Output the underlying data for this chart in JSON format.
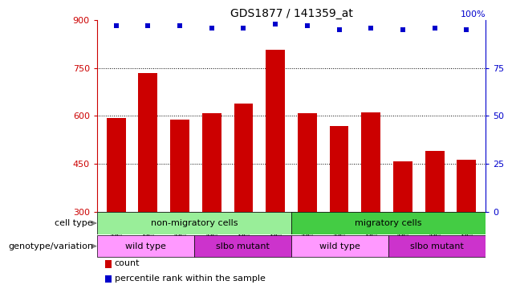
{
  "title": "GDS1877 / 141359_at",
  "samples": [
    "GSM96597",
    "GSM96598",
    "GSM96599",
    "GSM96604",
    "GSM96605",
    "GSM96606",
    "GSM96593",
    "GSM96595",
    "GSM96596",
    "GSM96600",
    "GSM96602",
    "GSM96603"
  ],
  "counts": [
    593,
    735,
    588,
    608,
    638,
    808,
    608,
    567,
    610,
    458,
    490,
    462
  ],
  "percentiles": [
    97,
    97,
    97,
    96,
    96,
    98,
    97,
    95,
    96,
    95,
    96,
    95
  ],
  "ylim_left": [
    300,
    900
  ],
  "ylim_right": [
    0,
    100
  ],
  "yticks_left": [
    300,
    450,
    600,
    750,
    900
  ],
  "yticks_right": [
    0,
    25,
    50,
    75
  ],
  "grid_lines": [
    450,
    600,
    750
  ],
  "bar_color": "#cc0000",
  "dot_color": "#0000cc",
  "bar_width": 0.6,
  "left_axis_color": "#cc0000",
  "right_axis_color": "#0000cc",
  "bg_color": "#ffffff",
  "tick_label_bg": "#cccccc",
  "cell_type_groups": [
    {
      "text": "non-migratory cells",
      "start": 0,
      "end": 6,
      "color": "#99ee99"
    },
    {
      "text": "migratory cells",
      "start": 6,
      "end": 12,
      "color": "#44cc44"
    }
  ],
  "genotype_groups": [
    {
      "text": "wild type",
      "start": 0,
      "end": 3,
      "color": "#ff99ff"
    },
    {
      "text": "slbo mutant",
      "start": 3,
      "end": 6,
      "color": "#cc33cc"
    },
    {
      "text": "wild type",
      "start": 6,
      "end": 9,
      "color": "#ff99ff"
    },
    {
      "text": "slbo mutant",
      "start": 9,
      "end": 12,
      "color": "#cc33cc"
    }
  ],
  "legend_items": [
    {
      "label": "count",
      "color": "#cc0000"
    },
    {
      "label": "percentile rank within the sample",
      "color": "#0000cc"
    }
  ],
  "cell_type_label": "cell type",
  "genotype_label": "genotype/variation",
  "right_top_label": "100%"
}
